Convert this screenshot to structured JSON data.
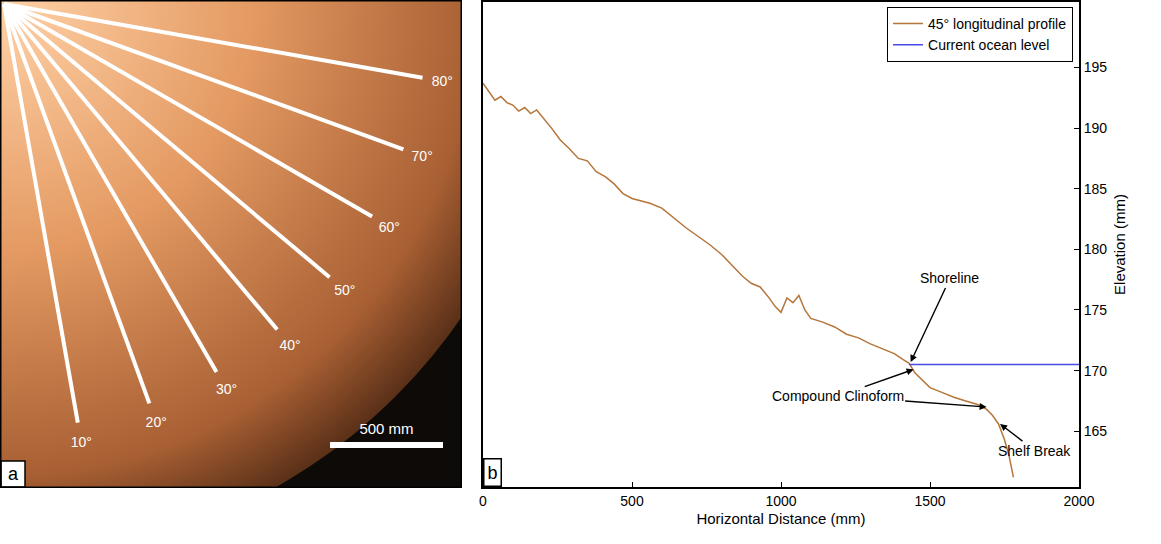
{
  "panel_a": {
    "panel_label": "a",
    "rays": [
      {
        "value": 10,
        "label": "10°"
      },
      {
        "value": 20,
        "label": "20°"
      },
      {
        "value": 30,
        "label": "30°"
      },
      {
        "value": 40,
        "label": "40°"
      },
      {
        "value": 50,
        "label": "50°"
      },
      {
        "value": 60,
        "label": "60°"
      },
      {
        "value": 70,
        "label": "70°"
      },
      {
        "value": 80,
        "label": "80°"
      }
    ],
    "scale_bar": {
      "value": 500,
      "label": "500 mm"
    }
  },
  "chart_data": {
    "type": "line",
    "panel_label": "b",
    "x_label": "Horizontal Distance (mm)",
    "y_label": "Elevation (mm)",
    "xlim": [
      0,
      2000
    ],
    "xticks": [
      0,
      500,
      1000,
      1500,
      2000
    ],
    "ylim": [
      160.4,
      200.4
    ],
    "yticks": [
      165,
      170,
      175,
      180,
      185,
      190,
      195
    ],
    "grid": false,
    "legend": "top right",
    "series": [
      {
        "name": "45° longitudinal profile",
        "color": "#b5763a",
        "line_style": "solid",
        "x": [
          0,
          20,
          40,
          60,
          80,
          100,
          120,
          140,
          160,
          180,
          200,
          230,
          260,
          290,
          320,
          350,
          380,
          410,
          440,
          470,
          500,
          530,
          560,
          600,
          640,
          680,
          720,
          760,
          800,
          840,
          870,
          900,
          930,
          960,
          980,
          1000,
          1020,
          1040,
          1060,
          1080,
          1100,
          1140,
          1180,
          1220,
          1260,
          1300,
          1340,
          1380,
          1410,
          1430,
          1450,
          1470,
          1500,
          1540,
          1580,
          1620,
          1660,
          1690,
          1710,
          1730,
          1750,
          1765,
          1780
        ],
        "values": [
          193.7,
          193,
          192.3,
          192.6,
          192.1,
          191.9,
          191.4,
          191.7,
          191.2,
          191.5,
          190.9,
          190.0,
          189.0,
          188.3,
          187.5,
          187.3,
          186.4,
          186.0,
          185.4,
          184.6,
          184.2,
          184.0,
          183.8,
          183.4,
          182.6,
          181.8,
          181.1,
          180.4,
          179.6,
          178.6,
          177.8,
          177.2,
          176.9,
          176.0,
          175.3,
          174.8,
          176.0,
          175.6,
          176.2,
          175.0,
          174.3,
          174.0,
          173.6,
          173.0,
          172.7,
          172.2,
          171.8,
          171.4,
          170.9,
          170.6,
          169.8,
          169.3,
          168.6,
          168.2,
          167.8,
          167.5,
          167.2,
          166.8,
          166.3,
          165.6,
          164.3,
          163.0,
          161.2
        ]
      },
      {
        "name": "Current ocean level",
        "color": "#4a4ae6",
        "line_style": "solid",
        "x": [
          1430,
          2000
        ],
        "values": [
          170.5,
          170.5
        ]
      }
    ],
    "annotations": [
      {
        "text": "Shoreline",
        "text_x": 1567,
        "text_y": 177.6,
        "arrows": [
          [
            1435,
            170.7
          ]
        ]
      },
      {
        "text": "Compound Clinoform",
        "text_x": 1190,
        "text_y": 167.9,
        "arrows": [
          [
            1445,
            170.1
          ],
          [
            1690,
            167.0
          ]
        ]
      },
      {
        "text": "Shelf Break",
        "text_x": 1852,
        "text_y": 163.4,
        "arrows": [
          [
            1735,
            165.6
          ]
        ]
      }
    ]
  }
}
